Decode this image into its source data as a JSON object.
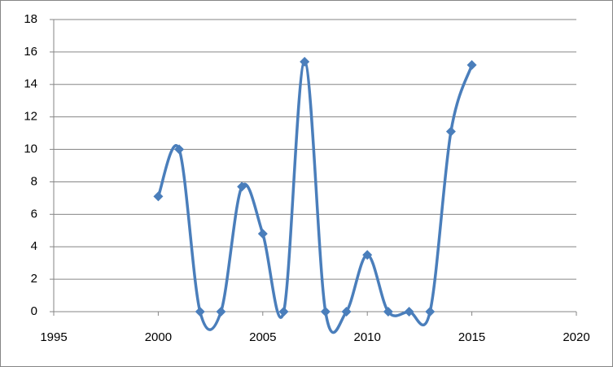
{
  "chart_data": {
    "type": "scatter",
    "x": [
      2000,
      2001,
      2002,
      2003,
      2004,
      2005,
      2006,
      2007,
      2008,
      2009,
      2010,
      2011,
      2012,
      2013,
      2014,
      2015
    ],
    "series": [
      {
        "color": "#4a7ebb",
        "values": [
          7.1,
          10.0,
          0,
          0,
          7.7,
          4.8,
          0,
          15.4,
          0,
          0,
          3.5,
          0,
          0,
          0,
          11.1,
          15.2
        ]
      }
    ],
    "xlim": [
      1995,
      2020
    ],
    "xticks": [
      1995,
      2000,
      2005,
      2010,
      2015,
      2020
    ],
    "ylim": [
      0,
      18
    ],
    "yticks": [
      0,
      2,
      4,
      6,
      8,
      10,
      12,
      14,
      16,
      18
    ],
    "grid": true,
    "smooth": true
  }
}
